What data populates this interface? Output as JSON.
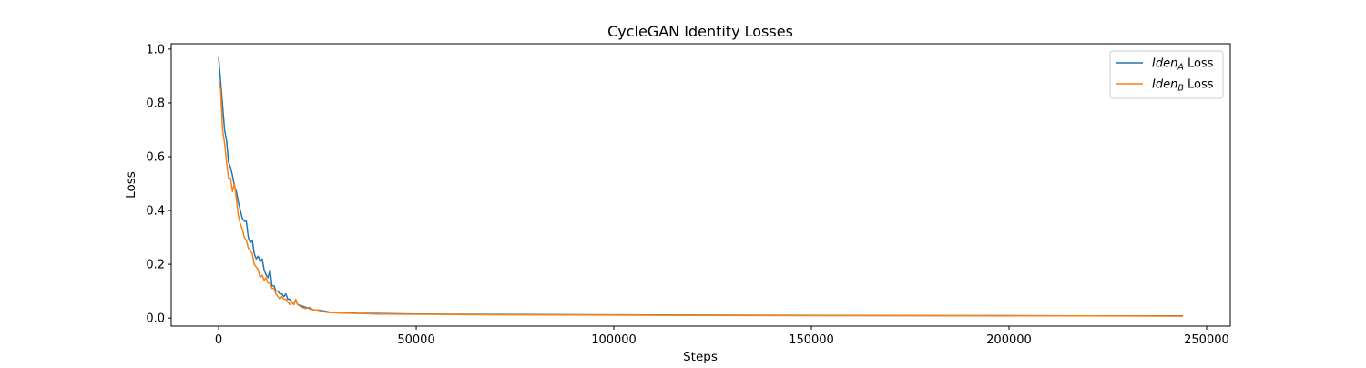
{
  "chart_data": {
    "type": "line",
    "title": "CycleGAN Identity Losses",
    "xlabel": "Steps",
    "ylabel": "Loss",
    "xlim": [
      -12000,
      256000
    ],
    "ylim": [
      -0.03,
      1.02
    ],
    "xticks": [
      0,
      50000,
      100000,
      150000,
      200000,
      250000
    ],
    "yticks": [
      0.0,
      0.2,
      0.4,
      0.6,
      0.8,
      1.0
    ],
    "xtick_labels": [
      "0",
      "50000",
      "100000",
      "150000",
      "200000",
      "250000"
    ],
    "ytick_labels": [
      "0.0",
      "0.2",
      "0.4",
      "0.6",
      "0.8",
      "1.0"
    ],
    "grid": false,
    "legend_position": "top-right",
    "legend": [
      {
        "base": "Iden",
        "sub": "A",
        "suffix": " Loss",
        "color": "#1f77b4"
      },
      {
        "base": "Iden",
        "sub": "B",
        "suffix": " Loss",
        "color": "#ff7f0e"
      }
    ],
    "series": [
      {
        "name": "IdenA Loss",
        "color": "#1f77b4",
        "x": [
          0,
          500,
          1000,
          1500,
          2000,
          2500,
          3000,
          3500,
          4000,
          4500,
          5000,
          5500,
          6000,
          6500,
          7000,
          7500,
          8000,
          8500,
          9000,
          9500,
          10000,
          10500,
          11000,
          11500,
          12000,
          12500,
          13000,
          13500,
          14000,
          14500,
          15000,
          15500,
          16000,
          16500,
          17000,
          17500,
          18000,
          18500,
          19000,
          19500,
          20000,
          21000,
          22000,
          23000,
          24000,
          25000,
          26000,
          27000,
          28000,
          30000,
          32000,
          35000,
          40000,
          50000,
          60000,
          80000,
          100000,
          120000,
          150000,
          180000,
          200000,
          220000,
          244000
        ],
        "y": [
          0.97,
          0.88,
          0.79,
          0.7,
          0.66,
          0.58,
          0.56,
          0.53,
          0.49,
          0.47,
          0.43,
          0.4,
          0.37,
          0.36,
          0.36,
          0.3,
          0.28,
          0.29,
          0.24,
          0.22,
          0.23,
          0.21,
          0.22,
          0.18,
          0.16,
          0.15,
          0.18,
          0.12,
          0.12,
          0.1,
          0.1,
          0.09,
          0.09,
          0.08,
          0.09,
          0.07,
          0.07,
          0.06,
          0.05,
          0.065,
          0.05,
          0.045,
          0.04,
          0.035,
          0.03,
          0.03,
          0.028,
          0.025,
          0.022,
          0.02,
          0.02,
          0.018,
          0.017,
          0.015,
          0.014,
          0.013,
          0.012,
          0.011,
          0.01,
          0.009,
          0.009,
          0.008,
          0.008
        ]
      },
      {
        "name": "IdenB Loss",
        "color": "#ff7f0e",
        "x": [
          0,
          500,
          1000,
          1500,
          2000,
          2500,
          3000,
          3500,
          4000,
          4500,
          5000,
          5500,
          6000,
          6500,
          7000,
          7500,
          8000,
          8500,
          9000,
          9500,
          10000,
          10500,
          11000,
          11500,
          12000,
          12500,
          13000,
          13500,
          14000,
          14500,
          15000,
          15500,
          16000,
          16500,
          17000,
          17500,
          18000,
          18500,
          19000,
          19500,
          20000,
          21000,
          22000,
          23000,
          24000,
          25000,
          26000,
          27000,
          28000,
          30000,
          32000,
          35000,
          40000,
          50000,
          60000,
          80000,
          100000,
          120000,
          150000,
          180000,
          200000,
          220000,
          244000
        ],
        "y": [
          0.88,
          0.85,
          0.7,
          0.65,
          0.58,
          0.52,
          0.52,
          0.47,
          0.5,
          0.44,
          0.38,
          0.35,
          0.33,
          0.3,
          0.29,
          0.26,
          0.25,
          0.24,
          0.2,
          0.19,
          0.18,
          0.15,
          0.16,
          0.14,
          0.15,
          0.13,
          0.13,
          0.11,
          0.11,
          0.09,
          0.08,
          0.07,
          0.08,
          0.07,
          0.07,
          0.06,
          0.05,
          0.06,
          0.05,
          0.07,
          0.05,
          0.04,
          0.035,
          0.04,
          0.03,
          0.03,
          0.025,
          0.022,
          0.02,
          0.019,
          0.018,
          0.017,
          0.015,
          0.014,
          0.013,
          0.012,
          0.011,
          0.01,
          0.009,
          0.009,
          0.008,
          0.008,
          0.007
        ]
      }
    ]
  }
}
